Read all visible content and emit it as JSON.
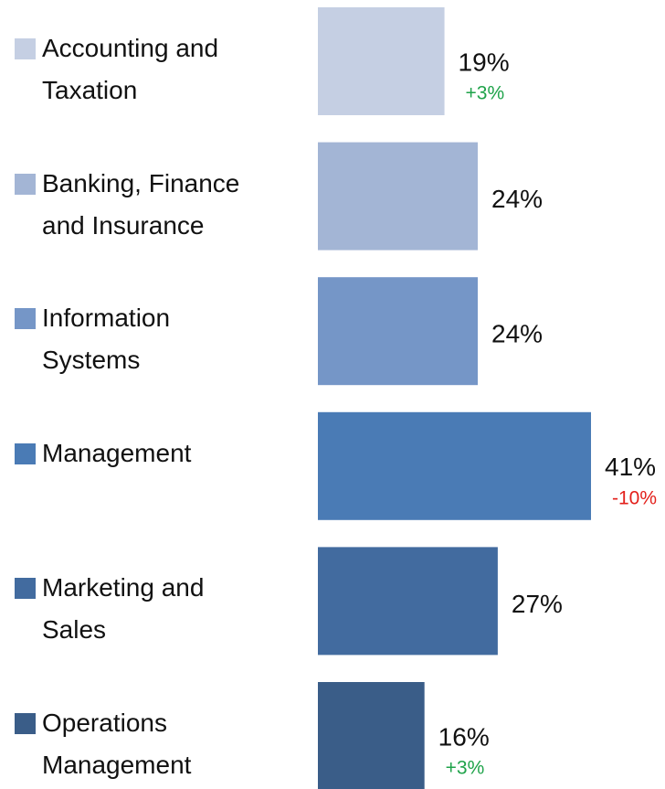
{
  "chart_data": {
    "type": "bar",
    "orientation": "horizontal",
    "categories": [
      "Accounting and Taxation",
      "Banking, Finance and Insurance",
      "Information Systems",
      "Management",
      "Marketing and Sales",
      "Operations Management"
    ],
    "values": [
      19,
      24,
      24,
      41,
      27,
      16
    ],
    "value_labels": [
      "19%",
      "24%",
      "24%",
      "41%",
      "27%",
      "16%"
    ],
    "colors": [
      "#c5cfe3",
      "#a3b5d5",
      "#7596c7",
      "#4a7bb5",
      "#426b9f",
      "#3a5d88"
    ],
    "changes": [
      3,
      null,
      null,
      -10,
      null,
      3
    ],
    "change_labels": [
      "+3%",
      null,
      null,
      "-10%",
      null,
      "+3%"
    ],
    "positive_color": "#1fa34a",
    "negative_color": "#e3201b"
  }
}
